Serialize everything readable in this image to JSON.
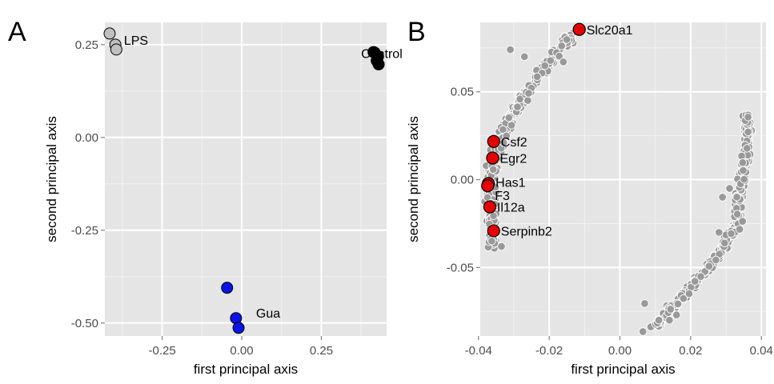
{
  "chart_data": [
    {
      "panel": "A",
      "type": "scatter",
      "xlabel": "first principal axis",
      "ylabel": "second principal axis",
      "xlim": [
        -0.43,
        0.455
      ],
      "ylim": [
        -0.535,
        0.31
      ],
      "xticks": [
        -0.25,
        0.0,
        0.25
      ],
      "xtick_labels": [
        "-0.25",
        "0.00",
        "0.25"
      ],
      "yticks": [
        0.25,
        0.0,
        -0.25,
        -0.5
      ],
      "ytick_labels": [
        "0.25",
        "0.00",
        "-0.25",
        "-0.50"
      ],
      "grid": true,
      "groups": [
        {
          "label": "LPS",
          "color": "#c0c0c0",
          "points": [
            [
              -0.415,
              0.28
            ],
            [
              -0.397,
              0.25
            ],
            [
              -0.394,
              0.237
            ]
          ],
          "label_at": [
            -0.37,
            0.26
          ]
        },
        {
          "label": "Control",
          "color": "#000000",
          "points": [
            [
              0.414,
              0.23
            ],
            [
              0.418,
              0.228
            ],
            [
              0.428,
              0.218
            ],
            [
              0.424,
              0.207
            ],
            [
              0.43,
              0.197
            ]
          ],
          "label_at": [
            0.375,
            0.225
          ]
        },
        {
          "label": "Gua",
          "color": "#0a14e6",
          "points": [
            [
              -0.046,
              -0.405
            ],
            [
              -0.018,
              -0.487
            ],
            [
              -0.01,
              -0.513
            ]
          ],
          "label_at": [
            0.045,
            -0.475
          ]
        }
      ]
    },
    {
      "panel": "B",
      "type": "scatter",
      "xlabel": "first principal axis",
      "ylabel": "second principal axis",
      "xlim": [
        -0.0395,
        0.0413
      ],
      "ylim": [
        -0.089,
        0.0895
      ],
      "xticks": [
        -0.04,
        -0.02,
        0.0,
        0.02,
        0.04
      ],
      "xtick_labels": [
        "-0.04",
        "-0.02",
        "0.00",
        "0.02",
        "0.04"
      ],
      "yticks": [
        0.05,
        0.0,
        -0.05
      ],
      "ytick_labels": [
        "0.05",
        "0.00",
        "-0.05"
      ],
      "grid": true,
      "background_points_color": "#999999",
      "highlighted_color": "#e50000",
      "highlighted": [
        {
          "gene": "Slc20a1",
          "x": -0.0115,
          "y": 0.0855
        },
        {
          "gene": "Csf2",
          "x": -0.0357,
          "y": 0.0217
        },
        {
          "gene": "Egr2",
          "x": -0.036,
          "y": 0.0123
        },
        {
          "gene": "Has1",
          "x": -0.0372,
          "y": -0.0022
        },
        {
          "gene": "F3",
          "x": -0.0374,
          "y": -0.0035
        },
        {
          "gene": "Il12a",
          "x": -0.0368,
          "y": -0.0155
        },
        {
          "gene": "Serpinb2",
          "x": -0.0357,
          "y": -0.0291
        }
      ]
    }
  ]
}
